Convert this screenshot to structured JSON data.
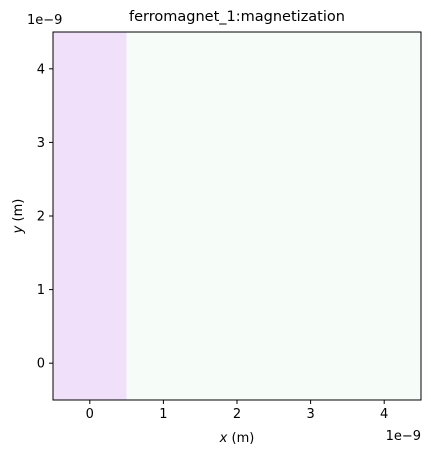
{
  "chart_data": {
    "type": "heatmap",
    "title": "ferromagnet_1:magnetization",
    "xlabel_var": "x",
    "xlabel_unit": " (m)",
    "ylabel_var": "y",
    "ylabel_unit": " (m)",
    "x_offset_text": "1e−9",
    "y_offset_text": "1e−9",
    "xlim": [
      -0.5,
      4.5
    ],
    "ylim": [
      -0.5,
      4.5
    ],
    "x_ticks": [
      0,
      1,
      2,
      3,
      4
    ],
    "y_ticks": [
      0,
      1,
      2,
      3,
      4
    ],
    "x_tick_labels": [
      "0",
      "1",
      "2",
      "3",
      "4"
    ],
    "y_tick_labels": [
      "0",
      "1",
      "2",
      "3",
      "4"
    ],
    "cells": [
      {
        "x0": -0.5,
        "x1": 0.5,
        "y0": -0.5,
        "y1": 4.5,
        "color": "#f1e0fa"
      },
      {
        "x0": 0.5,
        "x1": 4.5,
        "y0": -0.5,
        "y1": 4.5,
        "color": "#f6fdf8"
      }
    ],
    "grid": false
  }
}
